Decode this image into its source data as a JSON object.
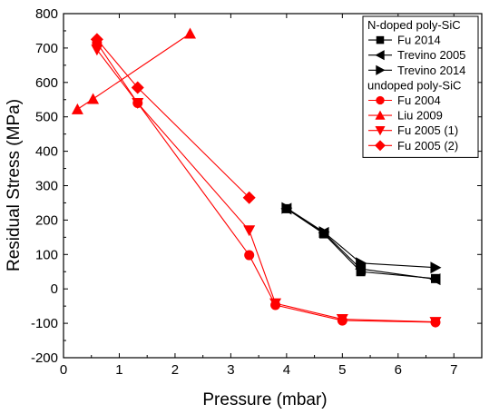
{
  "chart_data": {
    "type": "line",
    "xlabel": "Pressure (mbar)",
    "ylabel": "Residual Stress (MPa)",
    "xlim": [
      0,
      7.5
    ],
    "ylim": [
      -200,
      800
    ],
    "xticks": [
      0,
      1,
      2,
      3,
      4,
      5,
      6,
      7
    ],
    "yticks": [
      -200,
      -100,
      0,
      100,
      200,
      300,
      400,
      500,
      600,
      700,
      800
    ],
    "grid": false,
    "legend_position": "top-right",
    "legend_groups": [
      {
        "heading": "N-doped poly-SiC",
        "series": [
          {
            "name": "Fu 2014",
            "color": "#000000",
            "marker": "square",
            "x": [
              4.0,
              4.67,
              5.33,
              6.67
            ],
            "y": [
              233,
              160,
              50,
              30
            ]
          },
          {
            "name": "Trevino 2005",
            "color": "#000000",
            "marker": "triangle-left",
            "x": [
              4.0,
              4.67,
              5.33,
              6.67
            ],
            "y": [
              233,
              163,
              58,
              28
            ]
          },
          {
            "name": "Trevino 2014",
            "color": "#000000",
            "marker": "triangle-right",
            "x": [
              4.0,
              4.67,
              5.33,
              6.67
            ],
            "y": [
              235,
              165,
              75,
              62
            ]
          }
        ]
      },
      {
        "heading": "undoped poly-SiC",
        "series": [
          {
            "name": "Fu 2004",
            "color": "#ff0000",
            "marker": "circle",
            "x": [
              0.6,
              1.33,
              3.33,
              3.8,
              5.0,
              6.67
            ],
            "y": [
              715,
              540,
              98,
              -47,
              -92,
              -97
            ]
          },
          {
            "name": "Liu 2009",
            "color": "#ff0000",
            "marker": "triangle-up",
            "x": [
              0.25,
              0.53,
              2.27
            ],
            "y": [
              522,
              552,
              742
            ]
          },
          {
            "name": "Fu 2005 (1)",
            "color": "#ff0000",
            "marker": "triangle-down",
            "x": [
              0.6,
              1.33,
              3.33,
              3.8,
              5.0,
              6.67
            ],
            "y": [
              695,
              540,
              170,
              -42,
              -88,
              -96
            ]
          },
          {
            "name": "Fu 2005 (2)",
            "color": "#ff0000",
            "marker": "diamond",
            "x": [
              0.6,
              1.33,
              3.33
            ],
            "y": [
              725,
              585,
              265
            ]
          }
        ]
      }
    ]
  }
}
